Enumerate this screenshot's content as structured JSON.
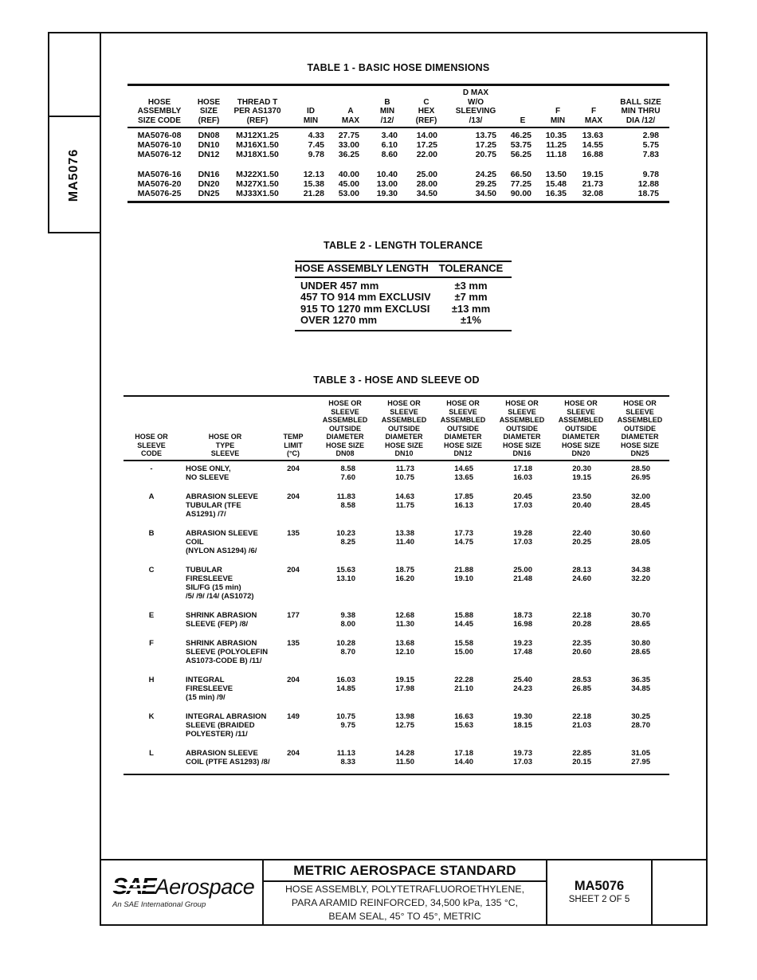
{
  "side_label": "MA5076",
  "table1": {
    "title": "TABLE 1 - BASIC HOSE DIMENSIONS",
    "col_headers": [
      [
        "HOSE",
        "ASSEMBLY",
        "SIZE CODE"
      ],
      [
        "HOSE",
        "SIZE",
        "(REF)"
      ],
      [
        "THREAD T",
        "PER AS1370",
        "(REF)"
      ],
      [
        "ID",
        "MIN"
      ],
      [
        "A",
        "MAX"
      ],
      [
        "B",
        "MIN",
        "/12/"
      ],
      [
        "C",
        "HEX",
        "(REF)"
      ],
      [
        "D MAX",
        "W/O",
        "SLEEVING",
        "/13/"
      ],
      [
        "E"
      ],
      [
        "F",
        "MIN"
      ],
      [
        "F",
        "MAX"
      ],
      [
        "BALL SIZE",
        "MIN THRU",
        "DIA /12/"
      ]
    ],
    "row_groups": [
      [
        [
          "MA5076-08",
          "DN08",
          "MJ12X1.25",
          "4.33",
          "27.75",
          "3.40",
          "14.00",
          "13.75",
          "46.25",
          "10.35",
          "13.63",
          "2.98"
        ],
        [
          "MA5076-10",
          "DN10",
          "MJ16X1.50",
          "7.45",
          "33.00",
          "6.10",
          "17.25",
          "17.25",
          "53.75",
          "11.25",
          "14.55",
          "5.75"
        ],
        [
          "MA5076-12",
          "DN12",
          "MJ18X1.50",
          "9.78",
          "36.25",
          "8.60",
          "22.00",
          "20.75",
          "56.25",
          "11.18",
          "16.88",
          "7.83"
        ]
      ],
      [
        [
          "MA5076-16",
          "DN16",
          "MJ22X1.50",
          "12.13",
          "40.00",
          "10.40",
          "25.00",
          "24.25",
          "66.50",
          "13.50",
          "19.15",
          "9.78"
        ],
        [
          "MA5076-20",
          "DN20",
          "MJ27X1.50",
          "15.38",
          "45.00",
          "13.00",
          "28.00",
          "29.25",
          "77.25",
          "15.48",
          "21.73",
          "12.88"
        ],
        [
          "MA5076-25",
          "DN25",
          "MJ33X1.50",
          "21.28",
          "53.00",
          "19.30",
          "34.50",
          "34.50",
          "90.00",
          "16.35",
          "32.08",
          "18.75"
        ]
      ]
    ]
  },
  "table2": {
    "title": "TABLE 2 - LENGTH TOLERANCE",
    "headers": [
      "HOSE ASSEMBLY LENGTH",
      "TOLERANCE"
    ],
    "rows": [
      [
        "UNDER 457 mm",
        "±3 mm"
      ],
      [
        "457 TO 914 mm EXCLUSIVE",
        "±7 mm"
      ],
      [
        "915 TO 1270 mm EXCLUSIVE",
        "±13 mm"
      ],
      [
        "OVER 1270 mm",
        "±1%"
      ]
    ]
  },
  "table3": {
    "title": "TABLE 3 - HOSE AND SLEEVE OD",
    "left_headers": [
      [
        "HOSE OR",
        "SLEEVE",
        "CODE"
      ],
      [
        "HOSE OR",
        "TYPE",
        "SLEEVE"
      ],
      [
        "TEMP",
        "LIMIT",
        "(°C)"
      ]
    ],
    "size_header_lines": [
      "HOSE OR",
      "SLEEVE",
      "ASSEMBLED",
      "OUTSIDE",
      "DIAMETER",
      "HOSE SIZE"
    ],
    "sizes": [
      "DN08",
      "DN10",
      "DN12",
      "DN16",
      "DN20",
      "DN25"
    ],
    "rows": [
      {
        "code": "-",
        "desc": [
          "HOSE ONLY,",
          "NO SLEEVE"
        ],
        "temp": "204",
        "values": [
          [
            "8.58",
            "7.60"
          ],
          [
            "11.73",
            "10.75"
          ],
          [
            "14.65",
            "13.65"
          ],
          [
            "17.18",
            "16.03"
          ],
          [
            "20.30",
            "19.15"
          ],
          [
            "28.50",
            "26.95"
          ]
        ]
      },
      {
        "code": "A",
        "desc": [
          "ABRASION SLEEVE",
          "TUBULAR (TFE AS1291) /7/"
        ],
        "temp": "204",
        "values": [
          [
            "11.83",
            "8.58"
          ],
          [
            "14.63",
            "11.75"
          ],
          [
            "17.85",
            "16.13"
          ],
          [
            "20.45",
            "17.03"
          ],
          [
            "23.50",
            "20.40"
          ],
          [
            "32.00",
            "28.45"
          ]
        ]
      },
      {
        "code": "B",
        "desc": [
          "ABRASION SLEEVE COIL",
          "(NYLON AS1294) /6/"
        ],
        "temp": "135",
        "values": [
          [
            "10.23",
            "8.25"
          ],
          [
            "13.38",
            "11.40"
          ],
          [
            "17.73",
            "14.75"
          ],
          [
            "19.28",
            "17.03"
          ],
          [
            "22.40",
            "20.25"
          ],
          [
            "30.60",
            "28.05"
          ]
        ]
      },
      {
        "code": "C",
        "desc": [
          "TUBULAR FIRESLEEVE",
          "SIL/FG (15 min)",
          "/5/ /9/ /14/ (AS1072)"
        ],
        "temp": "204",
        "values": [
          [
            "15.63",
            "13.10"
          ],
          [
            "18.75",
            "16.20"
          ],
          [
            "21.88",
            "19.10"
          ],
          [
            "25.00",
            "21.48"
          ],
          [
            "28.13",
            "24.60"
          ],
          [
            "34.38",
            "32.20"
          ]
        ]
      },
      {
        "code": "E",
        "desc": [
          "SHRINK ABRASION",
          "SLEEVE (FEP) /8/"
        ],
        "temp": "177",
        "values": [
          [
            "9.38",
            "8.00"
          ],
          [
            "12.68",
            "11.30"
          ],
          [
            "15.88",
            "14.45"
          ],
          [
            "18.73",
            "16.98"
          ],
          [
            "22.18",
            "20.28"
          ],
          [
            "30.70",
            "28.65"
          ]
        ]
      },
      {
        "code": "F",
        "desc": [
          "SHRINK ABRASION",
          "SLEEVE (POLYOLEFIN",
          "AS1073-CODE B) /11/"
        ],
        "temp": "135",
        "values": [
          [
            "10.28",
            "8.70"
          ],
          [
            "13.68",
            "12.10"
          ],
          [
            "15.58",
            "15.00"
          ],
          [
            "19.23",
            "17.48"
          ],
          [
            "22.35",
            "20.60"
          ],
          [
            "30.80",
            "28.65"
          ]
        ]
      },
      {
        "code": "H",
        "desc": [
          "INTEGRAL FIRESLEEVE",
          "(15 min) /9/"
        ],
        "temp": "204",
        "values": [
          [
            "16.03",
            "14.85"
          ],
          [
            "19.15",
            "17.98"
          ],
          [
            "22.28",
            "21.10"
          ],
          [
            "25.40",
            "24.23"
          ],
          [
            "28.53",
            "26.85"
          ],
          [
            "36.35",
            "34.85"
          ]
        ]
      },
      {
        "code": "K",
        "desc": [
          "INTEGRAL ABRASION",
          "SLEEVE (BRAIDED",
          "POLYESTER) /11/"
        ],
        "temp": "149",
        "values": [
          [
            "10.75",
            "9.75"
          ],
          [
            "13.98",
            "12.75"
          ],
          [
            "16.63",
            "15.63"
          ],
          [
            "19.30",
            "18.15"
          ],
          [
            "22.18",
            "21.03"
          ],
          [
            "30.25",
            "28.70"
          ]
        ]
      },
      {
        "code": "L",
        "desc": [
          "ABRASION SLEEVE",
          "COIL (PTFE AS1293) /8/"
        ],
        "temp": "204",
        "values": [
          [
            "11.13",
            "8.33"
          ],
          [
            "14.28",
            "11.50"
          ],
          [
            "17.18",
            "14.40"
          ],
          [
            "19.73",
            "17.03"
          ],
          [
            "22.85",
            "20.15"
          ],
          [
            "31.05",
            "27.95"
          ]
        ]
      }
    ]
  },
  "footer": {
    "logo_sae": "SAE",
    "logo_aerospace": "Aerospace",
    "logo_tagline": "An SAE International Group",
    "title": "METRIC AEROSPACE STANDARD",
    "subtitle_lines": [
      "HOSE ASSEMBLY, POLYTETRAFLUOROETHYLENE,",
      "PARA ARAMID REINFORCED, 34,500 kPa, 135 °C,",
      "BEAM SEAL, 45° TO 45°, METRIC"
    ],
    "doc_number": "MA5076",
    "sheet": "SHEET 2 OF 5"
  }
}
